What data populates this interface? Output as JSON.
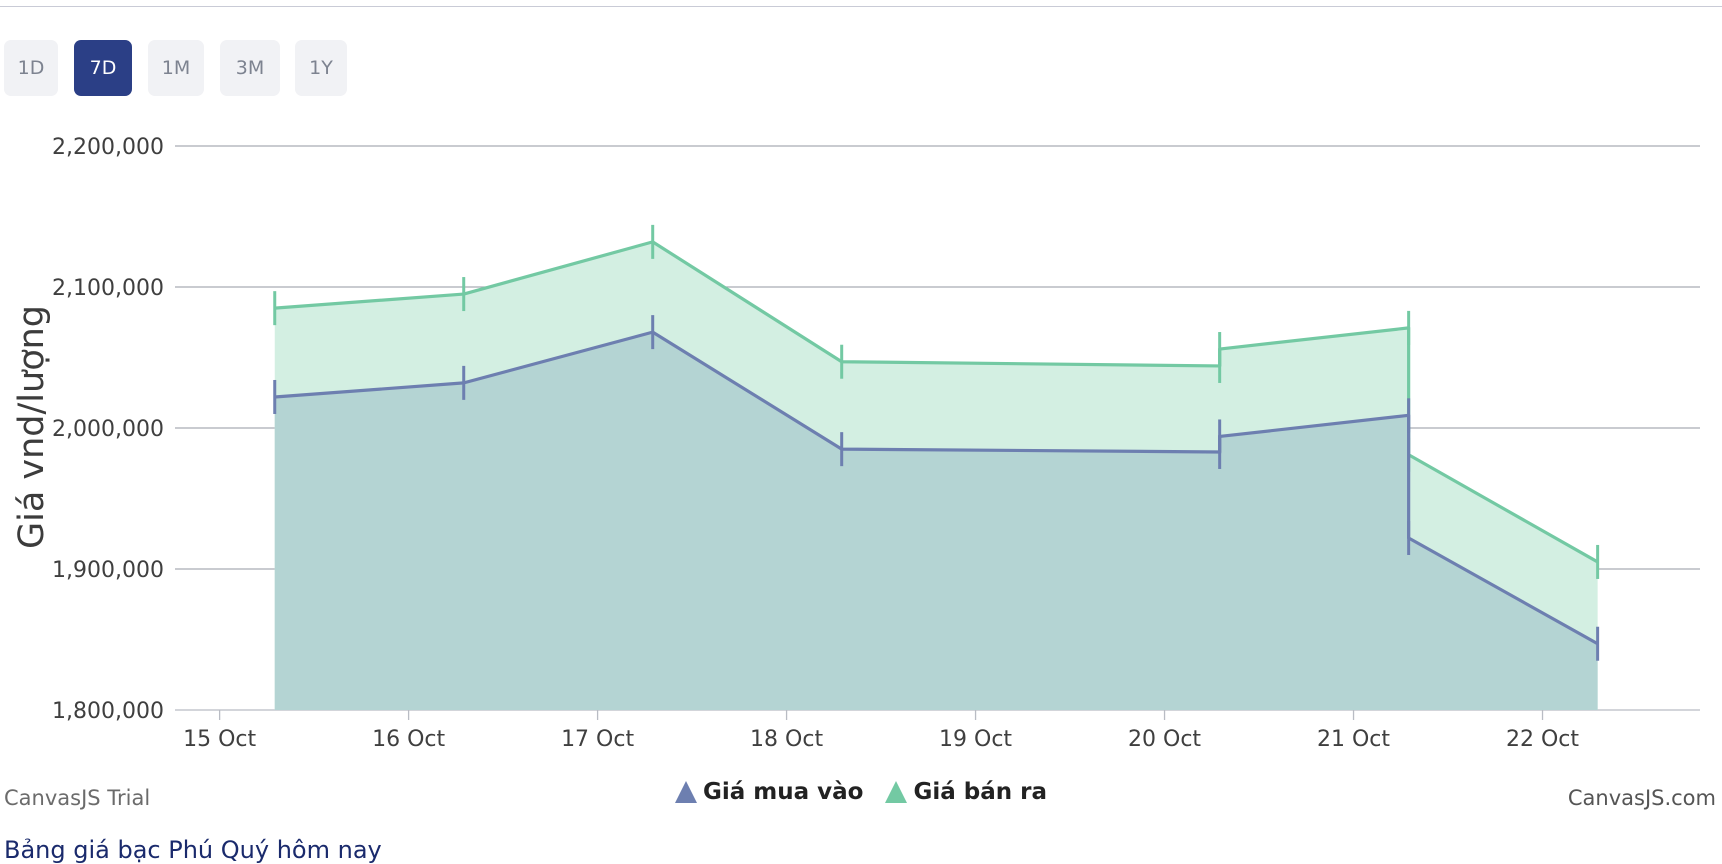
{
  "range_buttons": [
    {
      "label": "1D",
      "active": false
    },
    {
      "label": "7D",
      "active": true
    },
    {
      "label": "1M",
      "active": false
    },
    {
      "label": "3M",
      "active": false
    },
    {
      "label": "1Y",
      "active": false
    }
  ],
  "credits": {
    "left": "CanvasJS Trial",
    "right": "CanvasJS.com"
  },
  "below_title": "Bảng giá bạc Phú Quý hôm nay",
  "colors": {
    "buy": "#6d7fb0",
    "sell": "#73c9a3",
    "buy_fill": "#b4d4d3",
    "sell_fill": "#d3efe2",
    "active_button": "#2b3f86"
  },
  "chart_data": {
    "type": "area",
    "title": "",
    "xlabel": "",
    "ylabel": "Giá vnd/lượng",
    "ylim": [
      1800000,
      2200000
    ],
    "yticks": [
      "1,800,000",
      "1,900,000",
      "2,000,000",
      "2,100,000",
      "2,200,000"
    ],
    "xticks": [
      "15 Oct",
      "16 Oct",
      "17 Oct",
      "18 Oct",
      "19 Oct",
      "20 Oct",
      "21 Oct",
      "22 Oct"
    ],
    "x_range": [
      "2024-10-14T18:20",
      "2024-10-22T20:00"
    ],
    "grid": true,
    "legend_position": "bottom-center",
    "series": [
      {
        "name": "Giá mua vào",
        "color": "#6d7fb0",
        "points": [
          {
            "x": "2024-10-15T07:00",
            "y": 2022000
          },
          {
            "x": "2024-10-16T07:00",
            "y": 2032000
          },
          {
            "x": "2024-10-17T07:00",
            "y": 2068000
          },
          {
            "x": "2024-10-18T07:00",
            "y": 1985000
          },
          {
            "x": "2024-10-20T07:00",
            "y": 1983000
          },
          {
            "x": "2024-10-20T07:00",
            "y": 1994000
          },
          {
            "x": "2024-10-21T07:00",
            "y": 2009000
          },
          {
            "x": "2024-10-21T07:00",
            "y": 1922000
          },
          {
            "x": "2024-10-22T07:00",
            "y": 1847000
          }
        ]
      },
      {
        "name": "Giá bán ra",
        "color": "#73c9a3",
        "points": [
          {
            "x": "2024-10-15T07:00",
            "y": 2085000
          },
          {
            "x": "2024-10-16T07:00",
            "y": 2095000
          },
          {
            "x": "2024-10-17T07:00",
            "y": 2132000
          },
          {
            "x": "2024-10-18T07:00",
            "y": 2047000
          },
          {
            "x": "2024-10-20T07:00",
            "y": 2044000
          },
          {
            "x": "2024-10-20T07:00",
            "y": 2056000
          },
          {
            "x": "2024-10-21T07:00",
            "y": 2071000
          },
          {
            "x": "2024-10-21T07:00",
            "y": 1981000
          },
          {
            "x": "2024-10-22T07:00",
            "y": 1905000
          }
        ]
      }
    ]
  }
}
